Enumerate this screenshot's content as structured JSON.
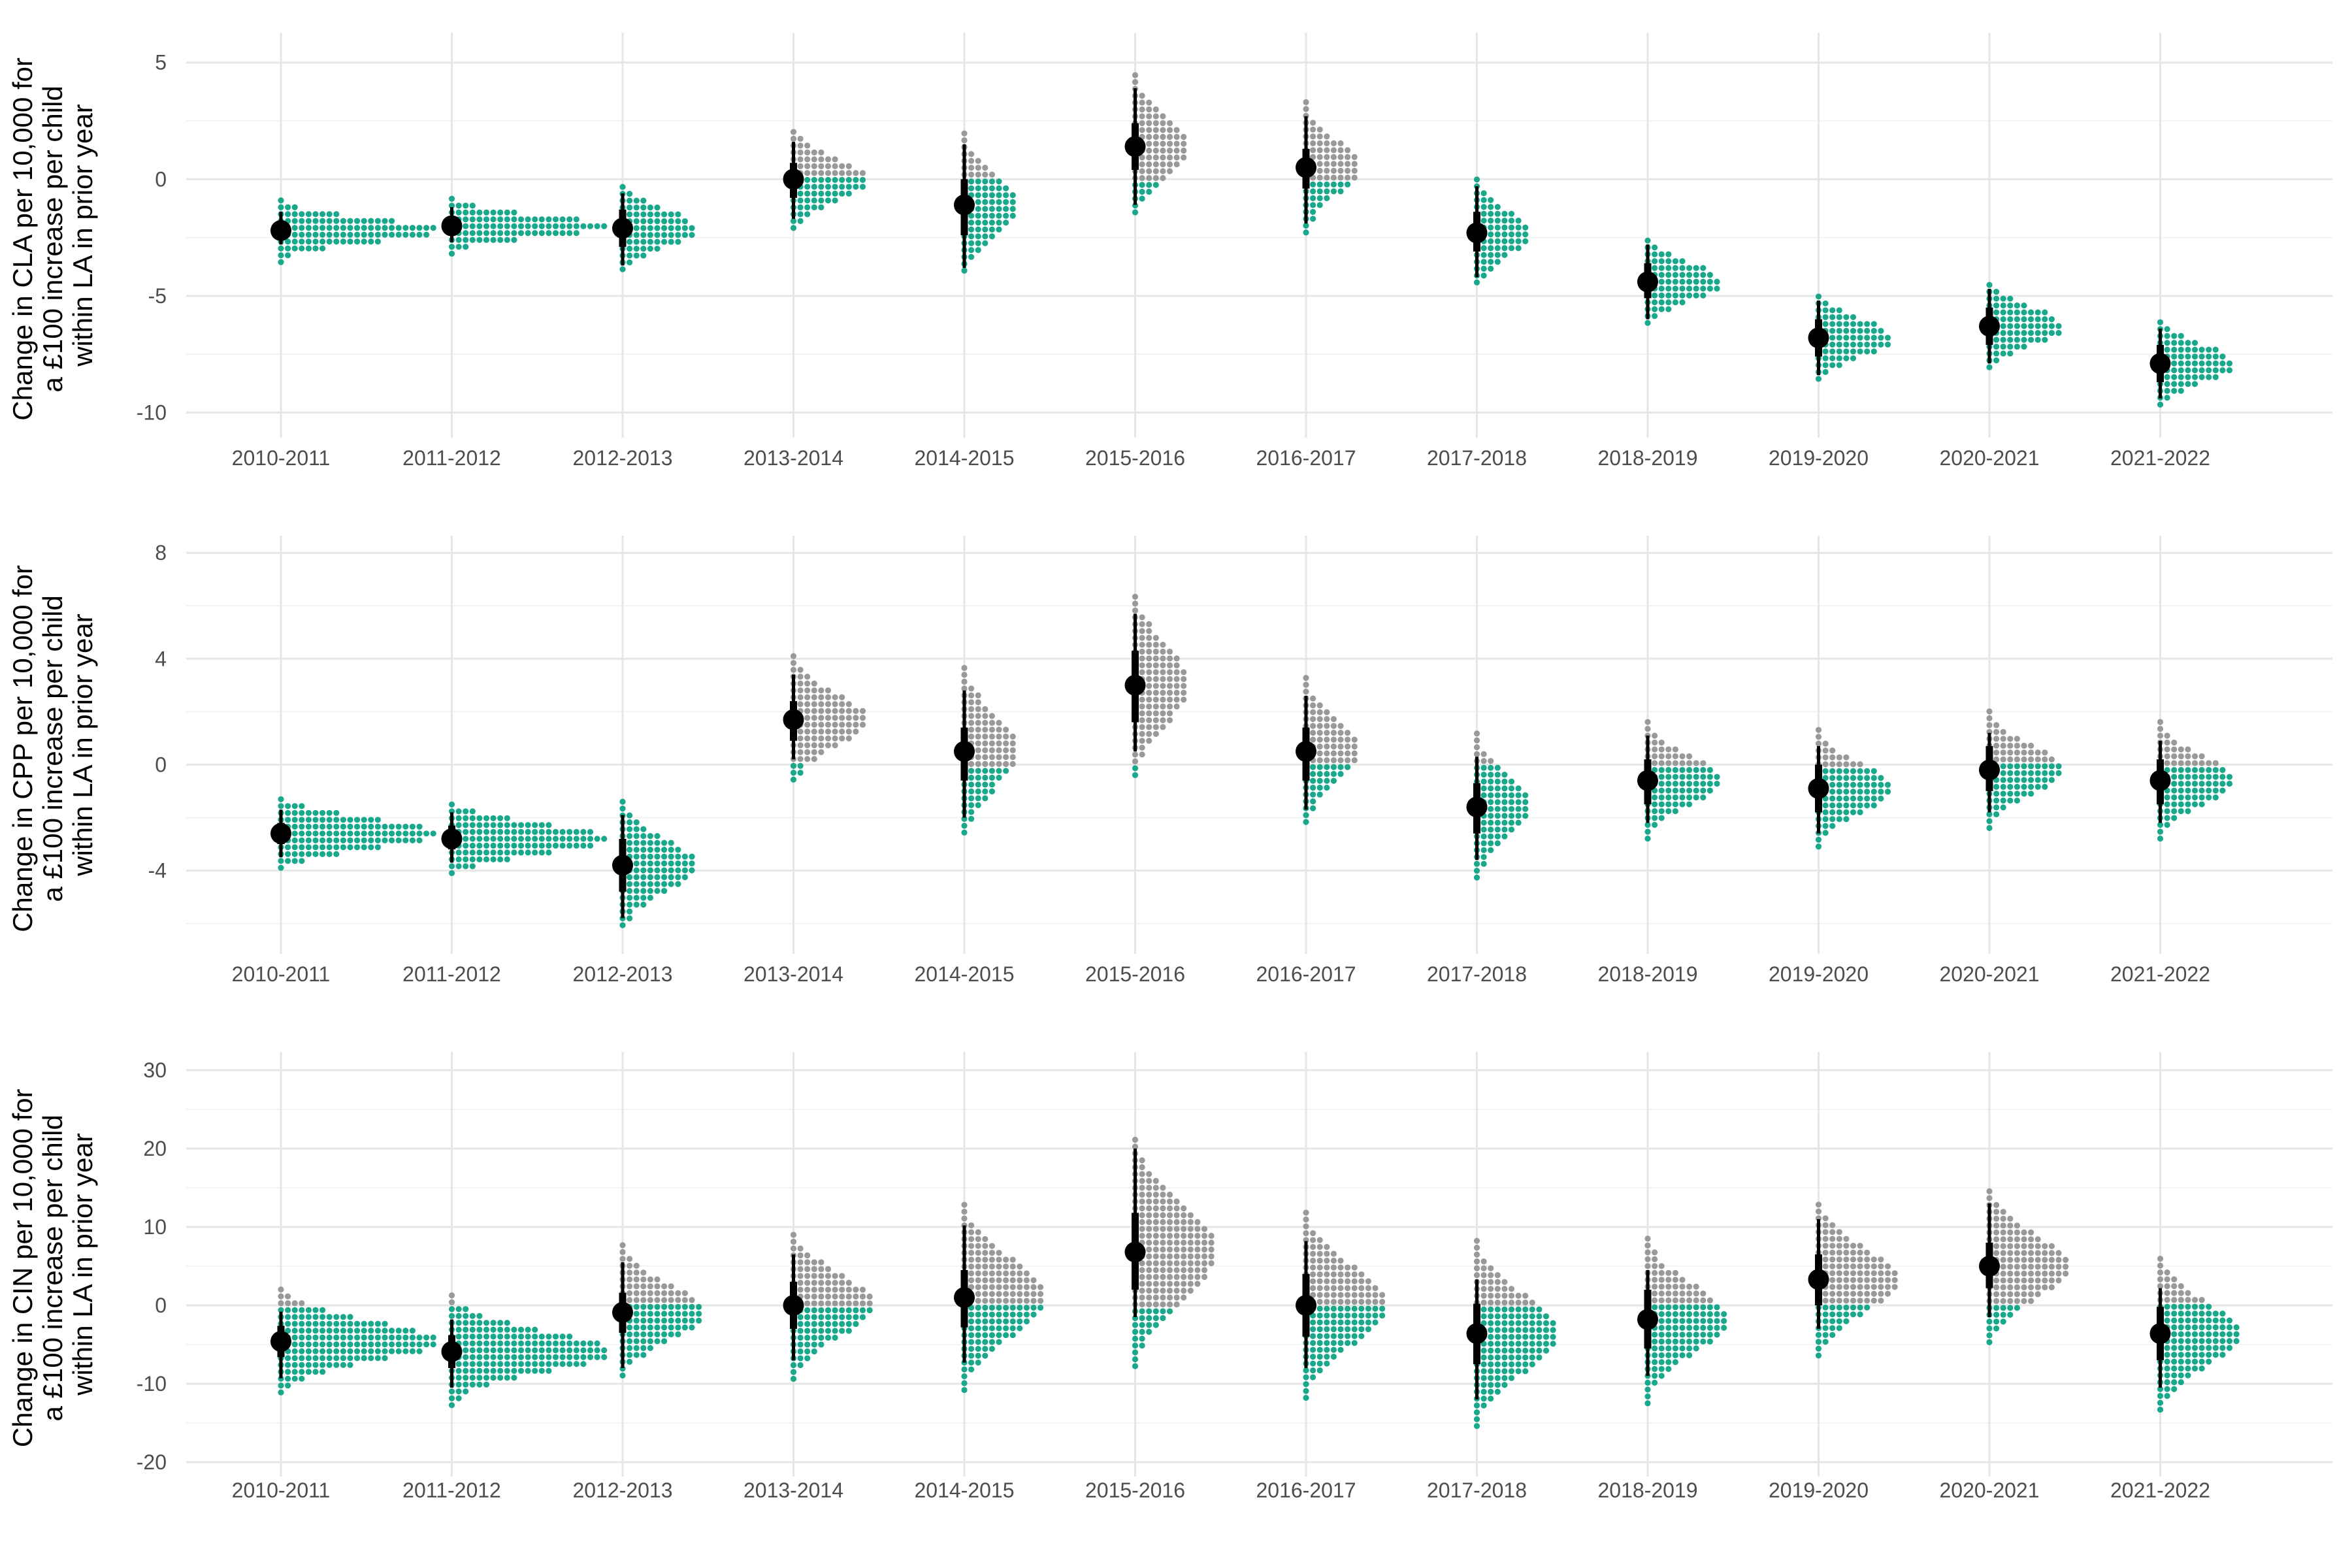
{
  "colors": {
    "below_zero": "#1aa88c",
    "above_zero": "#999999",
    "estimate": "#000000",
    "grid": "#e6e6e6"
  },
  "chart_data": [
    {
      "type": "dotplot",
      "ylabel_lines": [
        "Change in CLA per 10,000 for",
        "a £100 increase per child",
        "within LA in prior year"
      ],
      "categories": [
        "2010-2011",
        "2011-2012",
        "2012-2013",
        "2013-2014",
        "2014-2015",
        "2015-2016",
        "2016-2017",
        "2017-2018",
        "2018-2019",
        "2019-2020",
        "2020-2021",
        "2021-2022"
      ],
      "y_ticks": [
        5,
        0,
        -5,
        -10
      ],
      "y_tick_labels": [
        "5",
        "0",
        "-5",
        "-10"
      ],
      "ylim": [
        -10.8,
        6.0
      ],
      "estimates": [
        -2.2,
        -2.0,
        -2.1,
        0.0,
        -1.1,
        1.4,
        0.5,
        -2.3,
        -4.4,
        -6.8,
        -6.3,
        -7.9
      ],
      "intervals_66": [
        [
          -2.5,
          -1.9
        ],
        [
          -2.3,
          -1.7
        ],
        [
          -2.9,
          -1.3
        ],
        [
          -0.8,
          0.7
        ],
        [
          -2.4,
          0.0
        ],
        [
          0.4,
          2.4
        ],
        [
          -0.4,
          1.3
        ],
        [
          -3.1,
          -1.4
        ],
        [
          -5.1,
          -3.6
        ],
        [
          -7.6,
          -6.0
        ],
        [
          -7.1,
          -5.5
        ],
        [
          -8.7,
          -7.1
        ]
      ],
      "intervals_95": [
        [
          -2.8,
          -1.4
        ],
        [
          -2.7,
          -1.2
        ],
        [
          -3.7,
          -0.6
        ],
        [
          -1.7,
          1.6
        ],
        [
          -3.8,
          1.5
        ],
        [
          -1.1,
          3.9
        ],
        [
          -1.9,
          2.7
        ],
        [
          -4.2,
          -0.3
        ],
        [
          -6.0,
          -2.8
        ],
        [
          -8.4,
          -5.2
        ],
        [
          -7.9,
          -4.7
        ],
        [
          -9.4,
          -6.4
        ]
      ],
      "distribution_sd": [
        0.5,
        0.45,
        0.8,
        0.9,
        1.3,
        1.3,
        1.2,
        1.0,
        0.8,
        0.8,
        0.8,
        0.8
      ],
      "distribution_width": [
        2.3,
        2.3,
        1.1,
        1.1,
        0.8,
        0.8,
        0.8,
        0.8,
        1.1,
        1.1,
        1.1,
        1.1
      ]
    },
    {
      "type": "dotplot",
      "ylabel_lines": [
        "Change in CPP per 10,000 for",
        "a £100 increase per child",
        "within LA in prior year"
      ],
      "categories": [
        "2010-2011",
        "2011-2012",
        "2012-2013",
        "2013-2014",
        "2014-2015",
        "2015-2016",
        "2016-2017",
        "2017-2018",
        "2018-2019",
        "2019-2020",
        "2020-2021",
        "2021-2022"
      ],
      "y_ticks": [
        8,
        4,
        0,
        -4
      ],
      "y_tick_labels": [
        "8",
        "4",
        "0",
        "-4"
      ],
      "ylim": [
        -6.9,
        8.4
      ],
      "estimates": [
        -2.6,
        -2.8,
        -3.8,
        1.7,
        0.5,
        3.0,
        0.5,
        -1.6,
        -0.6,
        -0.9,
        -0.2,
        -0.6
      ],
      "intervals_66": [
        [
          -3.0,
          -2.2
        ],
        [
          -3.2,
          -2.3
        ],
        [
          -4.8,
          -2.8
        ],
        [
          0.9,
          2.4
        ],
        [
          -0.6,
          1.4
        ],
        [
          1.6,
          4.3
        ],
        [
          -0.6,
          1.4
        ],
        [
          -2.6,
          -0.7
        ],
        [
          -1.5,
          0.2
        ],
        [
          -1.8,
          0.0
        ],
        [
          -1.0,
          0.7
        ],
        [
          -1.5,
          0.2
        ]
      ],
      "intervals_95": [
        [
          -3.5,
          -1.7
        ],
        [
          -3.7,
          -1.8
        ],
        [
          -5.8,
          -1.9
        ],
        [
          0.2,
          3.4
        ],
        [
          -2.0,
          2.8
        ],
        [
          0.5,
          5.7
        ],
        [
          -1.7,
          2.6
        ],
        [
          -3.6,
          0.3
        ],
        [
          -2.2,
          1.1
        ],
        [
          -2.6,
          0.7
        ],
        [
          -1.8,
          1.2
        ],
        [
          -2.2,
          0.9
        ]
      ],
      "distribution_sd": [
        0.55,
        0.55,
        1.0,
        1.0,
        1.4,
        1.5,
        1.2,
        1.2,
        0.9,
        0.9,
        0.9,
        0.9
      ],
      "distribution_width": [
        2.3,
        2.3,
        1.1,
        1.1,
        0.8,
        0.8,
        0.8,
        0.8,
        1.1,
        1.1,
        1.1,
        1.1
      ]
    },
    {
      "type": "dotplot",
      "ylabel_lines": [
        "Change in CIN per 10,000 for",
        "a £100 increase per child",
        "within LA in prior year"
      ],
      "categories": [
        "2010-2011",
        "2011-2012",
        "2012-2013",
        "2013-2014",
        "2014-2015",
        "2015-2016",
        "2016-2017",
        "2017-2018",
        "2018-2019",
        "2019-2020",
        "2020-2021",
        "2021-2022"
      ],
      "y_ticks": [
        30,
        20,
        10,
        0,
        -10,
        -20
      ],
      "y_tick_labels": [
        "30",
        "20",
        "10",
        "0",
        "-10",
        "-20"
      ],
      "ylim": [
        -21.0,
        31.5
      ],
      "estimates": [
        -4.6,
        -5.9,
        -0.9,
        0.0,
        1.0,
        6.8,
        0.0,
        -3.6,
        -1.8,
        3.3,
        5.0,
        -3.6
      ],
      "intervals_66": [
        [
          -6.6,
          -2.6
        ],
        [
          -8.0,
          -3.8
        ],
        [
          -3.5,
          1.6
        ],
        [
          -3.0,
          3.0
        ],
        [
          -2.8,
          4.5
        ],
        [
          2.0,
          11.8
        ],
        [
          -4.0,
          4.0
        ],
        [
          -7.5,
          0.2
        ],
        [
          -5.5,
          2.0
        ],
        [
          0.0,
          6.5
        ],
        [
          2.2,
          8.0
        ],
        [
          -7.0,
          -0.2
        ]
      ],
      "intervals_95": [
        [
          -9.3,
          -0.8
        ],
        [
          -10.5,
          -1.8
        ],
        [
          -8.0,
          5.5
        ],
        [
          -7.0,
          6.5
        ],
        [
          -7.3,
          10.2
        ],
        [
          -1.5,
          20.0
        ],
        [
          -8.0,
          8.2
        ],
        [
          -12.0,
          3.3
        ],
        [
          -9.0,
          4.5
        ],
        [
          -3.0,
          11.0
        ],
        [
          -1.5,
          13.0
        ],
        [
          -10.5,
          2.2
        ]
      ],
      "distribution_sd": [
        2.5,
        2.6,
        3.5,
        3.9,
        4.9,
        6.0,
        4.9,
        4.9,
        4.3,
        4.0,
        4.0,
        4.0
      ],
      "distribution_width": [
        2.3,
        2.3,
        1.2,
        1.2,
        1.2,
        1.2,
        1.2,
        1.2,
        1.2,
        1.2,
        1.2,
        1.2
      ]
    }
  ]
}
